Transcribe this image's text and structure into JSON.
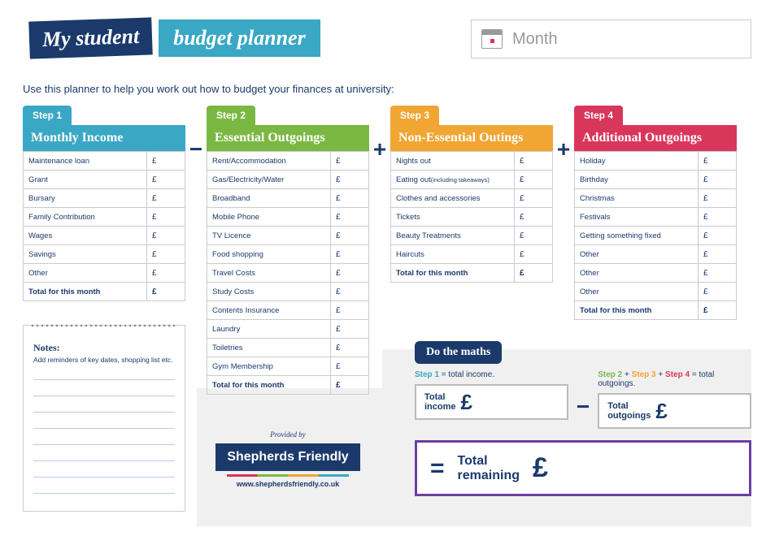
{
  "title": {
    "part1": "My student",
    "part2": "budget planner"
  },
  "month_placeholder": "Month",
  "intro": "Use this planner to help you work out how to budget your finances at university:",
  "currency": "£",
  "total_label": "Total for this month",
  "colors": {
    "navy": "#1b3a6b",
    "step1": "#3aa7c5",
    "step2": "#7bb843",
    "step3": "#f1a533",
    "step4": "#d9365b",
    "purple": "#6b3fa0"
  },
  "steps": [
    {
      "step": "Step 1",
      "header": "Monthly Income",
      "op_after": "−",
      "rows": [
        "Maintenance loan",
        "Grant",
        "Bursary",
        "Family Contribution",
        "Wages",
        "Savings",
        "Other"
      ]
    },
    {
      "step": "Step 2",
      "header": "Essential Outgoings",
      "op_after": "+",
      "rows": [
        "Rent/Accommodation",
        "Gas/Electricity/Water",
        "Broadband",
        "Mobile Phone",
        "TV Licence",
        "Food shopping",
        "Travel Costs",
        "Study Costs",
        "Contents Insurance",
        "Laundry",
        "Toiletries",
        "Gym Membership"
      ]
    },
    {
      "step": "Step 3",
      "header": "Non-Essential Outings",
      "op_after": "+",
      "rows": [
        "Nights out",
        "Eating out (including takeaways)",
        "Clothes and accessories",
        "Tickets",
        "Beauty Treatments",
        "Haircuts"
      ]
    },
    {
      "step": "Step 4",
      "header": "Additional Outgoings",
      "op_after": "",
      "rows": [
        "Holiday",
        "Birthday",
        "Christmas",
        "Festivals",
        "Getting something fixed",
        "Other",
        "Other",
        "Other"
      ]
    }
  ],
  "notes": {
    "title": "Notes:",
    "hint": "Add reminders of key dates, shopping list etc.",
    "lines": 8
  },
  "provided": {
    "label": "Provided by",
    "brand": "Shepherds Friendly",
    "url": "www.shepherdsfriendly.co.uk"
  },
  "maths": {
    "tab": "Do the maths",
    "eq1_pre": "Step 1",
    "eq1_post": " = total income.",
    "eq2_a": "Step 2",
    "eq2_b": "Step 3",
    "eq2_c": "Step 4",
    "eq2_post": " = total outgoings.",
    "box1": "Total\nincome",
    "box2": "Total\noutgoings",
    "remaining": "Total\nremaining"
  }
}
